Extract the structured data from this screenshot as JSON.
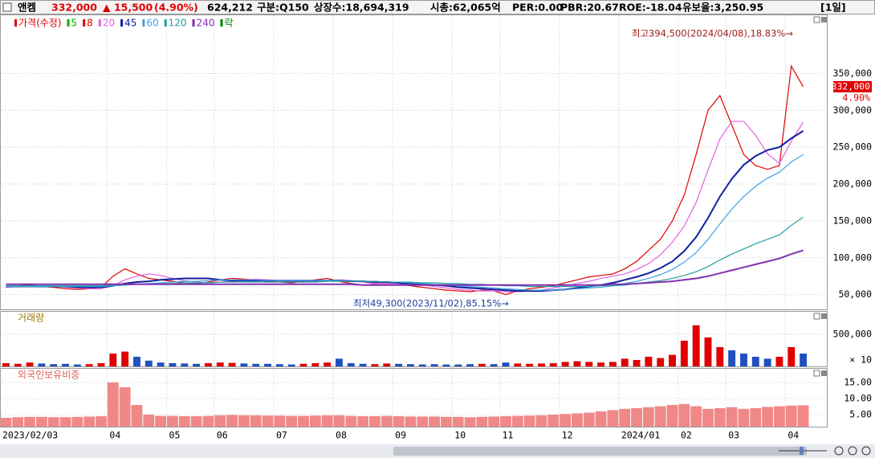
{
  "header": {
    "name": "앤켐",
    "price": "332,000",
    "change": "▲ 15,500",
    "change_pct": "(4.90%)",
    "volume": "624,212",
    "market": "구분:Q150",
    "shares": "상장수:18,694,319",
    "market_cap": "시총:62,065억",
    "per": "PER:0.00",
    "pbr": "PBR:20.67",
    "roe": "ROE:-18.04",
    "reserve": "유보율:3,250.95",
    "period": "[1일]"
  },
  "chart_data": [
    {
      "type": "line",
      "price_tag_change": "4.90%",
      "annotations": [
        "최고394,500(2024/04/08),18.83%→",
        "최저49,300(2023/11/02),85.15%→"
      ],
      "ylim": [
        30000,
        430000
      ],
      "yticks": [
        {
          "value": 50000,
          "label": "50,000"
        },
        {
          "value": 100000,
          "label": "100,000"
        },
        {
          "value": 150000,
          "label": "150,000"
        },
        {
          "value": 200000,
          "label": "200,000"
        },
        {
          "value": 250000,
          "label": "250,000"
        },
        {
          "value": 300000,
          "label": "300,000"
        },
        {
          "value": 350000,
          "label": "350,000"
        }
      ],
      "grid": true,
      "series": [
        {
          "name": "가격(수정)",
          "color": "#e00000",
          "values": [
            60000,
            62000,
            63000,
            61000,
            60000,
            58000,
            57000,
            58000,
            60000,
            75000,
            85000,
            78000,
            72000,
            70000,
            68000,
            66000,
            65000,
            67000,
            70000,
            72000,
            71000,
            70000,
            68000,
            67000,
            66000,
            68000,
            70000,
            72000,
            68000,
            65000,
            63000,
            64000,
            66000,
            65000,
            62000,
            60000,
            58000,
            56000,
            55000,
            54000,
            56000,
            55000,
            50000,
            55000,
            58000,
            60000,
            62000,
            66000,
            70000,
            74000,
            76000,
            78000,
            85000,
            95000,
            110000,
            125000,
            150000,
            185000,
            240000,
            300000,
            320000,
            280000,
            240000,
            225000,
            220000,
            225000,
            360000,
            332000
          ]
        },
        {
          "name": "5",
          "color": "#00b000"
        },
        {
          "name": "8",
          "color": "#e00000"
        },
        {
          "name": "20",
          "color": "#e060e0",
          "values": [
            60000,
            61000,
            62000,
            62000,
            62000,
            60000,
            59000,
            58000,
            58000,
            62000,
            70000,
            75000,
            78000,
            76000,
            72000,
            69000,
            67000,
            66000,
            67000,
            68000,
            70000,
            71000,
            70000,
            69000,
            68000,
            67000,
            68000,
            69000,
            70000,
            69000,
            67000,
            65000,
            65000,
            65000,
            64000,
            63000,
            61000,
            59000,
            57000,
            56000,
            55000,
            55000,
            54000,
            54000,
            55000,
            56000,
            59000,
            62000,
            65000,
            68000,
            72000,
            75000,
            78000,
            84000,
            92000,
            104000,
            121000,
            143000,
            175000,
            219000,
            261000,
            285000,
            285000,
            266000,
            241000,
            228000,
            258000,
            284000
          ]
        },
        {
          "name": "45",
          "color": "#1020a0",
          "values": [
            61000,
            61000,
            61000,
            61000,
            61000,
            61000,
            60000,
            60000,
            60000,
            62000,
            65000,
            67000,
            68000,
            70000,
            71000,
            72000,
            72000,
            72000,
            70000,
            69000,
            69000,
            69000,
            69000,
            69000,
            69000,
            69000,
            69000,
            69000,
            69000,
            68000,
            68000,
            67000,
            67000,
            66000,
            65000,
            64000,
            63000,
            62000,
            60000,
            59000,
            58000,
            57000,
            56000,
            55000,
            55000,
            55000,
            56000,
            57000,
            59000,
            61000,
            63000,
            66000,
            70000,
            74000,
            79000,
            86000,
            95000,
            109000,
            128000,
            154000,
            183000,
            207000,
            226000,
            238000,
            246000,
            250000,
            262000,
            272000
          ]
        },
        {
          "name": "60",
          "color": "#40a0e0",
          "values": [
            61000,
            61000,
            61000,
            61000,
            61000,
            61000,
            61000,
            61000,
            61000,
            62000,
            63000,
            64000,
            65000,
            66000,
            67000,
            68000,
            68000,
            69000,
            70000,
            70000,
            70000,
            70000,
            69000,
            69000,
            69000,
            69000,
            69000,
            69000,
            69000,
            68000,
            68000,
            68000,
            67000,
            67000,
            66000,
            65000,
            64000,
            63000,
            62000,
            61000,
            60000,
            59000,
            58000,
            57000,
            56000,
            56000,
            56000,
            57000,
            58000,
            59000,
            60000,
            62000,
            65000,
            68000,
            72000,
            77000,
            84000,
            94000,
            107000,
            125000,
            146000,
            166000,
            183000,
            197000,
            208000,
            216000,
            230000,
            240000
          ]
        },
        {
          "name": "120",
          "color": "#20a0a0",
          "values": [
            62000,
            62000,
            62000,
            62000,
            62000,
            62000,
            62000,
            62000,
            62000,
            63000,
            63000,
            64000,
            64000,
            65000,
            65000,
            66000,
            66000,
            66000,
            67000,
            67000,
            67000,
            67000,
            67000,
            67000,
            67000,
            67000,
            67000,
            68000,
            68000,
            68000,
            68000,
            68000,
            67000,
            67000,
            67000,
            66000,
            66000,
            65000,
            65000,
            64000,
            64000,
            63000,
            62000,
            62000,
            61000,
            61000,
            61000,
            61000,
            61000,
            61000,
            62000,
            62000,
            63000,
            65000,
            67000,
            69000,
            72000,
            76000,
            81000,
            88000,
            97000,
            105000,
            112000,
            119000,
            125000,
            131000,
            144000,
            155000
          ]
        },
        {
          "name": "240",
          "color": "#8030b0",
          "values": [
            64000,
            64000,
            64000,
            64000,
            64000,
            64000,
            64000,
            64000,
            64000,
            64000,
            64000,
            64000,
            64000,
            64000,
            64000,
            64000,
            64000,
            64000,
            64000,
            64000,
            64000,
            64000,
            64000,
            64000,
            64000,
            64000,
            64000,
            64000,
            64000,
            64000,
            63000,
            63000,
            63000,
            63000,
            63000,
            63000,
            63000,
            63000,
            63000,
            63000,
            63000,
            63000,
            63000,
            63000,
            63000,
            63000,
            63000,
            63000,
            63000,
            63000,
            63000,
            64000,
            64000,
            65000,
            66000,
            67000,
            68000,
            70000,
            72000,
            75000,
            79000,
            83000,
            87000,
            91000,
            95000,
            99000,
            105000,
            110000
          ]
        },
        {
          "name": "락",
          "color": "#008000"
        }
      ]
    },
    {
      "type": "bar",
      "title": "거래량",
      "unit_label": "× 10",
      "ylim": [
        0,
        725000
      ],
      "yticks": [
        {
          "value": 500000,
          "label": "500,000"
        }
      ],
      "values": [
        50000,
        40000,
        60000,
        45000,
        35000,
        40000,
        30000,
        35000,
        50000,
        200000,
        230000,
        150000,
        90000,
        60000,
        50000,
        45000,
        40000,
        50000,
        60000,
        55000,
        45000,
        40000,
        40000,
        35000,
        30000,
        40000,
        50000,
        60000,
        120000,
        50000,
        40000,
        35000,
        45000,
        40000,
        35000,
        30000,
        35000,
        30000,
        30000,
        35000,
        40000,
        35000,
        60000,
        45000,
        40000,
        45000,
        50000,
        70000,
        80000,
        70000,
        60000,
        70000,
        120000,
        100000,
        150000,
        130000,
        180000,
        400000,
        640000,
        450000,
        300000,
        250000,
        200000,
        150000,
        120000,
        150000,
        300000,
        200000
      ]
    },
    {
      "type": "bar",
      "title": "외국인보유비중",
      "color": "#f08888",
      "ylim": [
        1.25,
        16.5
      ],
      "yticks": [
        {
          "value": 5,
          "label": "5.00"
        },
        {
          "value": 10,
          "label": "10.00"
        },
        {
          "value": 15,
          "label": "15.00"
        }
      ],
      "categories": [
        "2023/02/03",
        null,
        null,
        null,
        null,
        null,
        null,
        null,
        null,
        "04",
        null,
        null,
        null,
        null,
        "05",
        null,
        null,
        null,
        "06",
        null,
        null,
        null,
        null,
        "07",
        null,
        null,
        null,
        null,
        "08",
        null,
        null,
        null,
        null,
        "09",
        null,
        null,
        null,
        null,
        "10",
        null,
        null,
        null,
        "11",
        null,
        null,
        null,
        null,
        "12",
        null,
        null,
        null,
        null,
        "2024/01",
        null,
        null,
        null,
        null,
        "02",
        null,
        null,
        null,
        "03",
        null,
        null,
        null,
        null,
        "04",
        null
      ],
      "values": [
        4.0,
        4.2,
        4.3,
        4.3,
        4.2,
        4.2,
        4.3,
        4.4,
        4.5,
        15.0,
        13.5,
        8.0,
        5.0,
        4.6,
        4.6,
        4.5,
        4.5,
        4.6,
        4.8,
        4.9,
        4.8,
        4.8,
        4.7,
        4.7,
        4.6,
        4.6,
        4.7,
        4.8,
        4.8,
        4.6,
        4.5,
        4.5,
        4.6,
        4.5,
        4.4,
        4.4,
        4.4,
        4.3,
        4.3,
        4.2,
        4.3,
        4.4,
        4.5,
        4.6,
        4.7,
        4.8,
        5.0,
        5.2,
        5.4,
        5.6,
        6.0,
        6.4,
        6.8,
        7.0,
        7.3,
        7.6,
        8.0,
        8.3,
        7.6,
        6.8,
        7.0,
        7.3,
        6.8,
        7.0,
        7.4,
        7.6,
        7.8,
        7.9
      ]
    }
  ]
}
